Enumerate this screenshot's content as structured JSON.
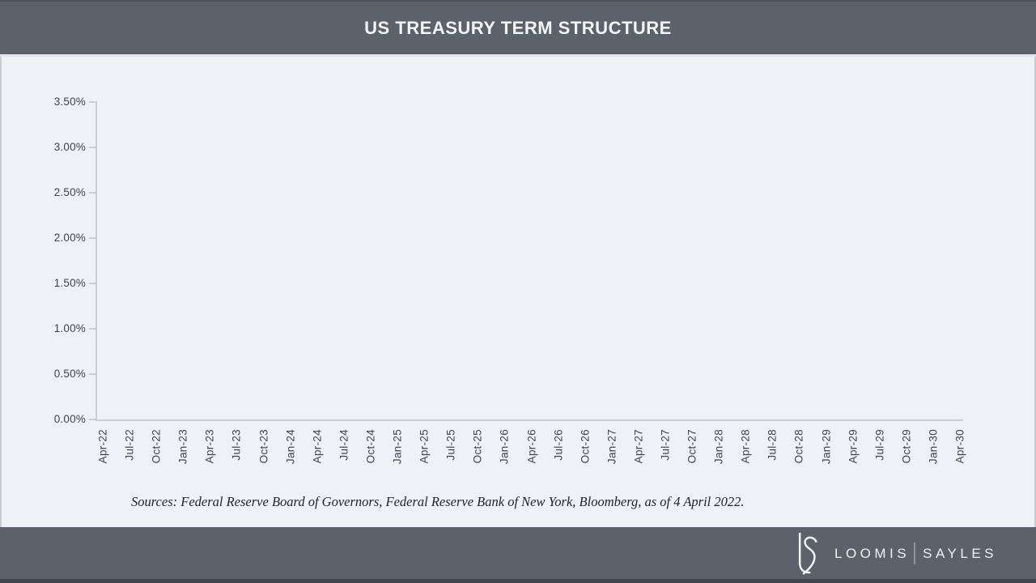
{
  "header": {
    "title": "US TREASURY TERM STRUCTURE"
  },
  "chart_data": {
    "type": "line",
    "title": "US TREASURY TERM STRUCTURE",
    "x_categories": [
      "Apr-22",
      "Jul-22",
      "Oct-22",
      "Jan-23",
      "Apr-23",
      "Jul-23",
      "Oct-23",
      "Jan-24",
      "Apr-24",
      "Jul-24",
      "Oct-24",
      "Jan-25",
      "Apr-25",
      "Jul-25",
      "Oct-25",
      "Jan-26",
      "Apr-26",
      "Jul-26",
      "Oct-26",
      "Jan-27",
      "Apr-27",
      "Jul-27",
      "Oct-27",
      "Jan-28",
      "Apr-28",
      "Jul-28",
      "Oct-28",
      "Jan-29",
      "Apr-29",
      "Jul-29",
      "Oct-29",
      "Jan-30",
      "Apr-30"
    ],
    "y_tick_labels": [
      "3.50%",
      "3.00%",
      "2.50%",
      "2.00%",
      "1.50%",
      "1.00%",
      "0.50%",
      "0.00%"
    ],
    "ylim": [
      0,
      3.5
    ],
    "y_tick_step": 0.5,
    "y_axis_format": "percent",
    "grid": false,
    "legend": "none",
    "series": []
  },
  "source_note": "Sources: Federal Reserve Board of Governors, Federal Reserve Bank of New York, Bloomberg, as of 4 April 2022.",
  "footer": {
    "logo": "loomis-sayles-ls-monogram",
    "brand_left": "LOOMIS",
    "brand_right": "SAYLES"
  },
  "colors": {
    "header_bg": "#5c626b",
    "body_bg": "#eef1f5",
    "footer_bg": "#5c626b",
    "footer_bottom_strip": "#42474f",
    "axis_line": "#c9cdd5",
    "tick_label": "#3e4450",
    "title_text": "#f3f4f6",
    "source_text": "#20242e",
    "brand_text": "#edeff2"
  }
}
